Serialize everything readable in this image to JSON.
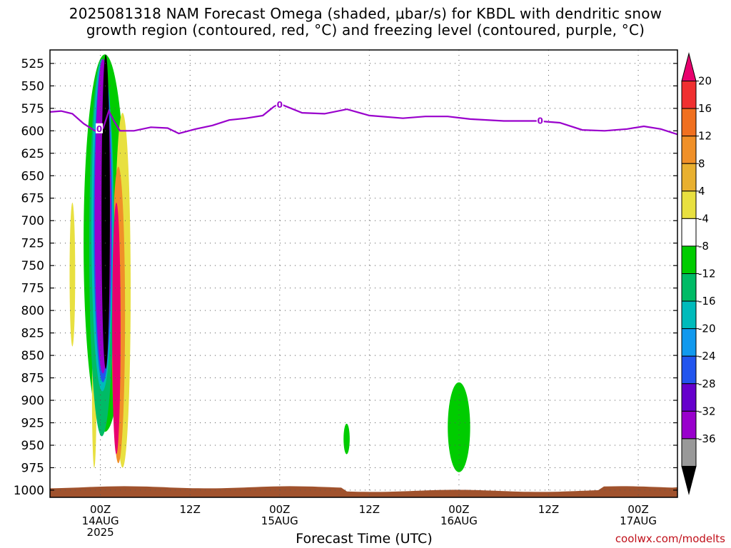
{
  "title": {
    "line1": "2025081318 NAM Forecast Omega (shaded, μbar/s) for KBDL with dendritic snow",
    "line2": "growth region (contoured, red, °C) and freezing level (contoured, purple, °C)"
  },
  "watermark": "coolwx.com/modelts",
  "colors": {
    "freezing_level": "#9900cc",
    "ground": "#a0522d",
    "grid": "#555555"
  },
  "chart_data": {
    "type": "heatmap",
    "xlabel": "Forecast Time (UTC)",
    "ylabel": "",
    "y_scale": "pressure (hPa), inverted",
    "ylim": [
      1008,
      510
    ],
    "y_ticks": [
      525,
      550,
      575,
      600,
      625,
      650,
      675,
      700,
      725,
      750,
      775,
      800,
      825,
      850,
      875,
      900,
      925,
      950,
      975,
      1000
    ],
    "x_range_hours": [
      -9,
      103
    ],
    "x_ticks": [
      {
        "hour": 0,
        "line1": "00Z",
        "line2": "14AUG",
        "line3": "2025"
      },
      {
        "hour": 16,
        "line1": "12Z",
        "line2": "",
        "line3": ""
      },
      {
        "hour": 32,
        "line1": "00Z",
        "line2": "15AUG",
        "line3": ""
      },
      {
        "hour": 48,
        "line1": "12Z",
        "line2": "",
        "line3": ""
      },
      {
        "hour": 64,
        "line1": "00Z",
        "line2": "16AUG",
        "line3": ""
      },
      {
        "hour": 80,
        "line1": "12Z",
        "line2": "",
        "line3": ""
      },
      {
        "hour": 96,
        "line1": "00Z",
        "line2": "17AUG",
        "line3": ""
      }
    ],
    "grid": "dotted",
    "colorbar": {
      "labels": [
        "20",
        "16",
        "12",
        "8",
        "4",
        "-4",
        "-8",
        "-12",
        "-16",
        "-20",
        "-24",
        "-28",
        "-32",
        "-36"
      ],
      "colors": [
        "#e8006e",
        "#f03030",
        "#f07020",
        "#f09028",
        "#e8b030",
        "#e8e040",
        "#ffffff",
        "#00cc00",
        "#00bb66",
        "#00bbbb",
        "#1199ee",
        "#2255ee",
        "#6600cc",
        "#9900cc",
        "#999999",
        "#000000"
      ]
    },
    "freezing_level_hpa": [
      [
        -9,
        579
      ],
      [
        -7,
        578
      ],
      [
        -5,
        581
      ],
      [
        -3,
        592
      ],
      [
        -1,
        600
      ],
      [
        0.5,
        597
      ],
      [
        1.5,
        578
      ],
      [
        2.5,
        590
      ],
      [
        3.5,
        600
      ],
      [
        6,
        600
      ],
      [
        9,
        596
      ],
      [
        12,
        597
      ],
      [
        14,
        603
      ],
      [
        17,
        598
      ],
      [
        20,
        594
      ],
      [
        23,
        588
      ],
      [
        26,
        586
      ],
      [
        29,
        583
      ],
      [
        31,
        573
      ],
      [
        32,
        570
      ],
      [
        34,
        575
      ],
      [
        36,
        580
      ],
      [
        40,
        581
      ],
      [
        44,
        576
      ],
      [
        48,
        583
      ],
      [
        54,
        586
      ],
      [
        58,
        584
      ],
      [
        62,
        584
      ],
      [
        66,
        587
      ],
      [
        72,
        589
      ],
      [
        78,
        589
      ],
      [
        82,
        591
      ],
      [
        86,
        599
      ],
      [
        90,
        600
      ],
      [
        94,
        598
      ],
      [
        97,
        595
      ],
      [
        100,
        598
      ],
      [
        103,
        604
      ]
    ],
    "freezing_level_labels": [
      {
        "hour": -0.2,
        "hpa": 598,
        "text": "0"
      },
      {
        "hour": 32,
        "hpa": 571,
        "text": "0"
      },
      {
        "hour": 78.5,
        "hpa": 589,
        "text": "0"
      }
    ],
    "omega_regions": [
      {
        "value": "-4",
        "color": "#00cc00",
        "hours": [
          -3,
          4.6
        ],
        "hpa": [
          515,
          935
        ]
      },
      {
        "value": "4",
        "color": "#e8e040",
        "hours": [
          -5.5,
          -4.5
        ],
        "hpa": [
          680,
          840
        ]
      },
      {
        "value": "4",
        "color": "#e8e040",
        "hours": [
          2.5,
          5.4
        ],
        "hpa": [
          580,
          975
        ]
      },
      {
        "value": "4",
        "color": "#e8e040",
        "hours": [
          -1.5,
          -0.7
        ],
        "hpa": [
          810,
          975
        ]
      },
      {
        "value": "8",
        "color": "#f09028",
        "hours": [
          2.0,
          4.4
        ],
        "hpa": [
          640,
          970
        ]
      },
      {
        "value": "-8",
        "color": "#00bb66",
        "hours": [
          -2.0,
          2.5
        ],
        "hpa": [
          520,
          940
        ]
      },
      {
        "value": "-12",
        "color": "#00bbbb",
        "hours": [
          -1.6,
          2.3
        ],
        "hpa": [
          520,
          890
        ]
      },
      {
        "value": "-20",
        "color": "#2255ee",
        "hours": [
          -1.2,
          2.1
        ],
        "hpa": [
          520,
          880
        ]
      },
      {
        "value": "-28",
        "color": "#9900cc",
        "hours": [
          -1.0,
          1.9
        ],
        "hpa": [
          520,
          870
        ]
      },
      {
        "value": "20",
        "color": "#e8006e",
        "hours": [
          2.1,
          3.6
        ],
        "hpa": [
          680,
          960
        ]
      },
      {
        "value": "-36",
        "color": "#000000",
        "hours": [
          0.2,
          1.7
        ],
        "hpa": [
          515,
          865
        ]
      },
      {
        "value": "-4",
        "color": "#00cc00",
        "hours": [
          43.4,
          44.5
        ],
        "hpa": [
          926,
          960
        ]
      },
      {
        "value": "-4",
        "color": "#00cc00",
        "hours": [
          62.0,
          66.0
        ],
        "hpa": [
          880,
          980
        ]
      }
    ]
  }
}
